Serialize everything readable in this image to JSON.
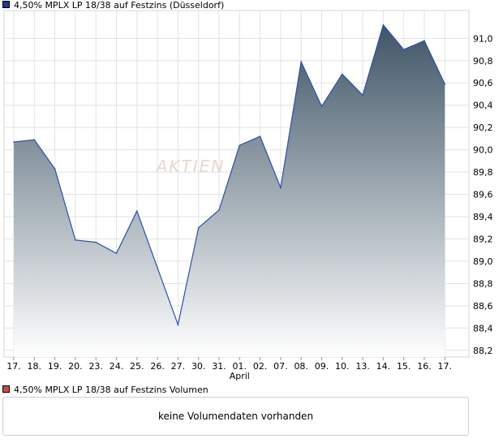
{
  "chart_data": {
    "type": "area",
    "title": "4,50% MPLX LP 18/38 auf Festzins (Düsseldorf)",
    "legend_color": "#1f3b8c",
    "line_color": "#2b4fa8",
    "fill_top_color": "#3f5566",
    "fill_bottom_color": "#ffffff",
    "grid": true,
    "categories": [
      "17.",
      "18.",
      "19.",
      "20.",
      "23.",
      "24.",
      "25.",
      "26.",
      "27.",
      "30.",
      "31.",
      "01.",
      "02.",
      "07.",
      "08.",
      "09.",
      "10.",
      "13.",
      "14.",
      "15.",
      "16.",
      "17."
    ],
    "month_label": "April",
    "month_label_index": 11,
    "values": [
      90.07,
      90.09,
      89.83,
      89.19,
      89.17,
      89.07,
      89.45,
      88.94,
      88.43,
      89.3,
      89.46,
      90.04,
      90.12,
      89.66,
      90.79,
      90.39,
      90.68,
      90.49,
      91.12,
      90.9,
      90.98,
      90.59
    ],
    "y_ticks": [
      "91,0",
      "90,8",
      "90,6",
      "90,4",
      "90,2",
      "90,0",
      "89,8",
      "89,6",
      "89,4",
      "89,2",
      "89,0",
      "88,8",
      "88,6",
      "88,4",
      "88,2"
    ],
    "ylim": [
      88.14,
      91.25
    ],
    "watermark": "AKTIEN"
  },
  "volume": {
    "title": "4,50% MPLX LP 18/38 auf Festzins Volumen",
    "legend_color": "#c0504d",
    "message": "keine Volumendaten vorhanden"
  }
}
